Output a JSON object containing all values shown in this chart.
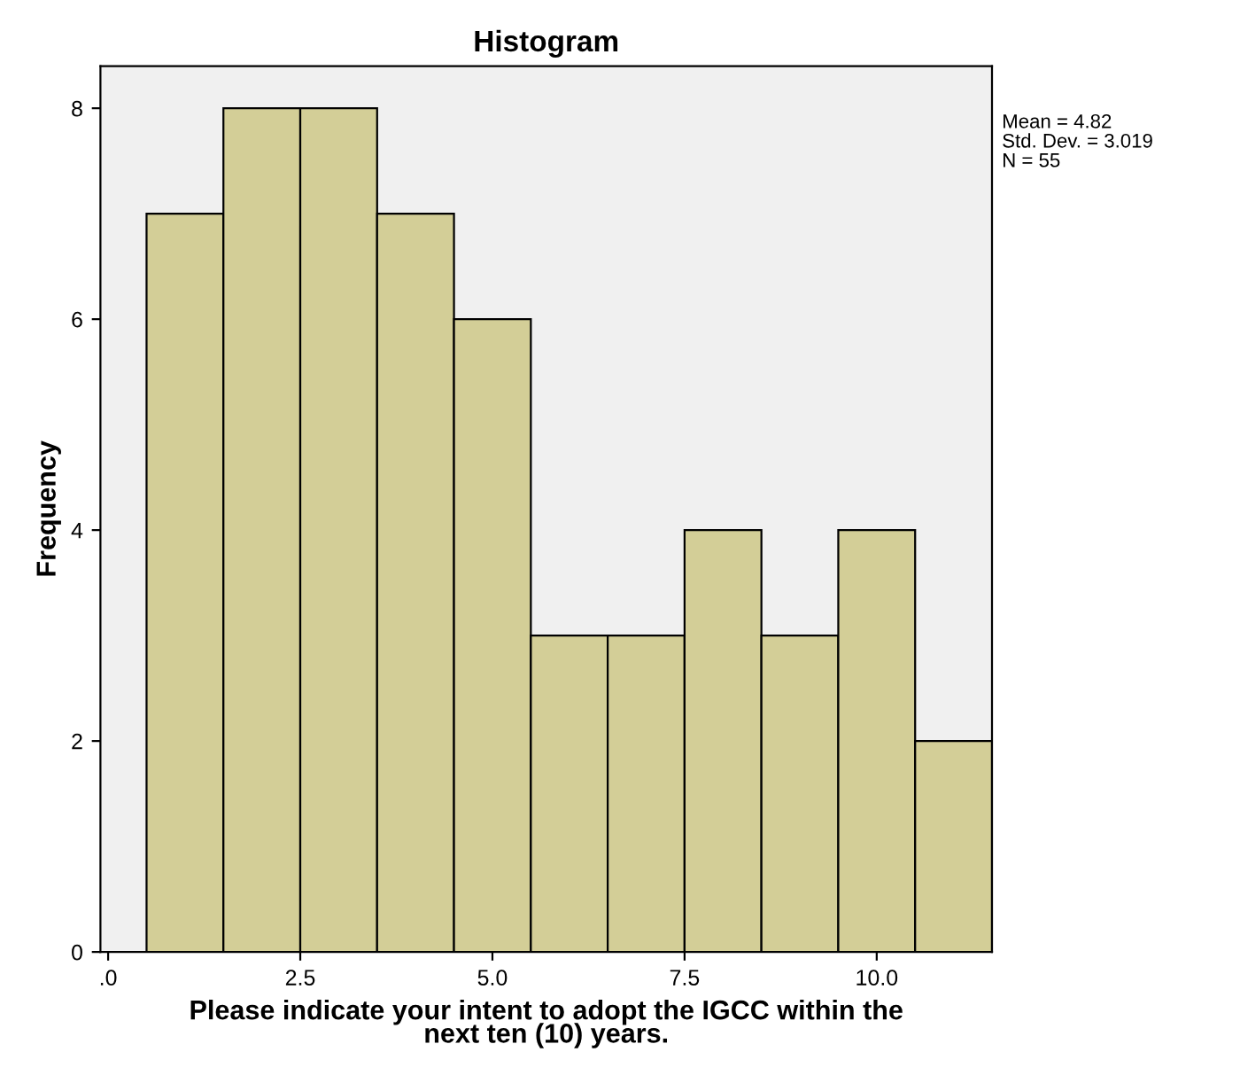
{
  "chart_data": {
    "type": "histogram",
    "title": "Histogram",
    "xlabel": "Please indicate your intent to adopt the IGCC within the\nnext ten (10) years.",
    "ylabel": "Frequency",
    "bins": [
      0.5,
      1.5,
      2.5,
      3.5,
      4.5,
      5.5,
      6.5,
      7.5,
      8.5,
      9.5,
      10.5,
      11.5
    ],
    "values": [
      7,
      8,
      8,
      7,
      6,
      3,
      3,
      4,
      3,
      4,
      2
    ],
    "color": "#d3ce97",
    "xlim": [
      -0.1,
      11.5
    ],
    "xticks": [
      {
        "value": 0,
        "label": ".0"
      },
      {
        "value": 2.5,
        "label": "2.5"
      },
      {
        "value": 5,
        "label": "5.0"
      },
      {
        "value": 7.5,
        "label": "7.5"
      },
      {
        "value": 10,
        "label": "10.0"
      }
    ],
    "ylim": [
      0,
      8.4
    ],
    "yticks": [
      0,
      2,
      4,
      6,
      8
    ],
    "annotations": [
      "Mean = 4.82",
      "Std. Dev. = 3.019",
      "N = 55"
    ],
    "grid": false,
    "legend": false
  }
}
